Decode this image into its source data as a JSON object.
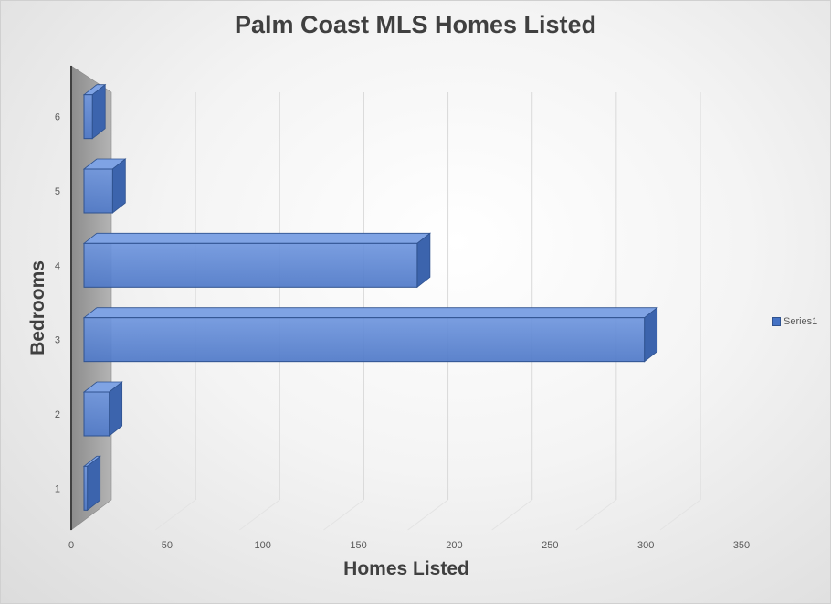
{
  "chart_data": {
    "type": "bar",
    "orientation": "horizontal",
    "style": "3d",
    "title": "Palm Coast MLS Homes Listed",
    "xlabel": "Homes Listed",
    "ylabel": "Bedrooms",
    "categories": [
      "1",
      "2",
      "3",
      "4",
      "5",
      "6"
    ],
    "series": [
      {
        "name": "Series1",
        "values": [
          2,
          15,
          333,
          198,
          17,
          5
        ]
      }
    ],
    "xlim": [
      0,
      350
    ],
    "xticks": [
      "0",
      "50",
      "100",
      "150",
      "200",
      "250",
      "300",
      "350"
    ],
    "grid": true,
    "legend": "right",
    "colors": {
      "bar": "#4472c4",
      "bar_edge": "#2f528f",
      "wall": "#a6a6a6"
    }
  }
}
